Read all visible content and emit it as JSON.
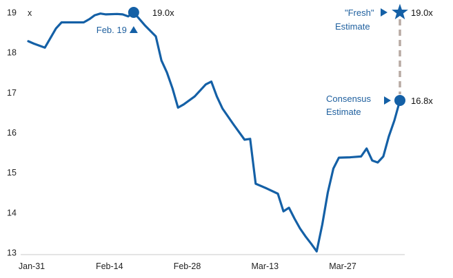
{
  "chart_data": {
    "type": "line",
    "y_unit_label": "x",
    "x_tick_labels": [
      "Jan-31",
      "Feb-14",
      "Feb-28",
      "Mar-13",
      "Mar-27"
    ],
    "x_range": [
      "2020-01-31",
      "2020-04-07"
    ],
    "ylim": [
      13,
      19
    ],
    "y_ticks": [
      13,
      14,
      15,
      16,
      17,
      18,
      19
    ],
    "grid": false,
    "series": [
      {
        "color": "#1460a6",
        "points": [
          [
            "2020-01-31",
            18.28
          ],
          [
            "2020-02-01",
            18.22
          ],
          [
            "2020-02-03",
            18.12
          ],
          [
            "2020-02-05",
            18.6
          ],
          [
            "2020-02-06",
            18.75
          ],
          [
            "2020-02-08",
            18.75
          ],
          [
            "2020-02-10",
            18.75
          ],
          [
            "2020-02-11",
            18.83
          ],
          [
            "2020-02-12",
            18.93
          ],
          [
            "2020-02-13",
            18.97
          ],
          [
            "2020-02-14",
            18.95
          ],
          [
            "2020-02-16",
            18.96
          ],
          [
            "2020-02-17",
            18.95
          ],
          [
            "2020-02-18",
            18.9
          ],
          [
            "2020-02-19",
            19.0
          ],
          [
            "2020-02-21",
            18.68
          ],
          [
            "2020-02-23",
            18.4
          ],
          [
            "2020-02-24",
            17.8
          ],
          [
            "2020-02-25",
            17.5
          ],
          [
            "2020-02-26",
            17.1
          ],
          [
            "2020-02-27",
            16.62
          ],
          [
            "2020-02-28",
            16.7
          ],
          [
            "2020-03-01",
            16.9
          ],
          [
            "2020-03-03",
            17.2
          ],
          [
            "2020-03-04",
            17.27
          ],
          [
            "2020-03-05",
            16.9
          ],
          [
            "2020-03-06",
            16.6
          ],
          [
            "2020-03-08",
            16.2
          ],
          [
            "2020-03-10",
            15.82
          ],
          [
            "2020-03-11",
            15.84
          ],
          [
            "2020-03-12",
            14.72
          ],
          [
            "2020-03-14",
            14.6
          ],
          [
            "2020-03-16",
            14.47
          ],
          [
            "2020-03-17",
            14.03
          ],
          [
            "2020-03-18",
            14.12
          ],
          [
            "2020-03-19",
            13.85
          ],
          [
            "2020-03-20",
            13.6
          ],
          [
            "2020-03-21",
            13.4
          ],
          [
            "2020-03-22",
            13.22
          ],
          [
            "2020-03-23",
            13.03
          ],
          [
            "2020-03-24",
            13.7
          ],
          [
            "2020-03-25",
            14.5
          ],
          [
            "2020-03-26",
            15.1
          ],
          [
            "2020-03-27",
            15.37
          ],
          [
            "2020-03-29",
            15.38
          ],
          [
            "2020-03-31",
            15.4
          ],
          [
            "2020-04-01",
            15.6
          ],
          [
            "2020-04-02",
            15.3
          ],
          [
            "2020-04-03",
            15.25
          ],
          [
            "2020-04-04",
            15.4
          ],
          [
            "2020-04-05",
            15.9
          ],
          [
            "2020-04-06",
            16.3
          ],
          [
            "2020-04-07",
            16.8
          ]
        ]
      }
    ],
    "annotations": {
      "peak": {
        "x": "2020-02-19",
        "y": 19.0,
        "value_label": "19.0x",
        "date_label": "Feb. 19"
      },
      "consensus": {
        "x": "2020-04-07",
        "y": 16.8,
        "value_label": "16.8x",
        "label_lines": [
          "Consensus",
          "Estimate"
        ]
      },
      "fresh": {
        "x": "2020-04-07",
        "y": 19.0,
        "value_label": "19.0x",
        "label_lines": [
          "\"Fresh\"",
          "Estimate"
        ]
      },
      "connector_style": "dashed",
      "connector_color": "#b8aaa3"
    },
    "colors": {
      "line": "#1460a6",
      "label_blue": "#1e5f9e",
      "axis": "#c8c8c8"
    }
  }
}
